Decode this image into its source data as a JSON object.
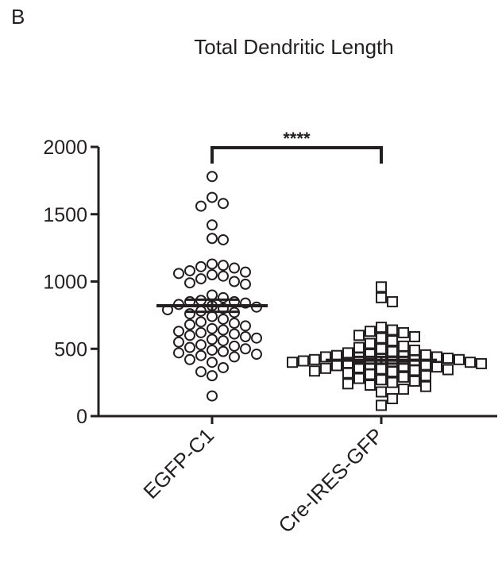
{
  "panel_letter": "B",
  "chart_data": {
    "type": "scatter",
    "title": "Total Dendritic Length",
    "xlabel": "",
    "ylabel": "",
    "categories": [
      "EGFP-C1",
      "Cre-IRES-GFP"
    ],
    "ylim": [
      0,
      2000
    ],
    "yticks": [
      0,
      500,
      1000,
      1500,
      2000
    ],
    "grid": false,
    "significance": {
      "label": "****",
      "between": [
        "EGFP-C1",
        "Cre-IRES-GFP"
      ]
    },
    "series": [
      {
        "category": "EGFP-C1",
        "marker": "circle",
        "mean": 820,
        "sem_upper": 865,
        "sem_lower": 775,
        "values": [
          1780,
          1625,
          1580,
          1560,
          1420,
          1320,
          1310,
          1130,
          1120,
          1110,
          1100,
          1080,
          1070,
          1060,
          1050,
          1040,
          1020,
          1000,
          990,
          980,
          900,
          880,
          860,
          850,
          850,
          840,
          830,
          820,
          810,
          800,
          790,
          780,
          770,
          760,
          740,
          720,
          700,
          690,
          680,
          670,
          650,
          640,
          630,
          620,
          610,
          600,
          590,
          580,
          570,
          560,
          550,
          530,
          520,
          510,
          500,
          490,
          480,
          470,
          460,
          450,
          440,
          420,
          400,
          360,
          330,
          300,
          150
        ]
      },
      {
        "category": "Cre-IRES-GFP",
        "marker": "square",
        "mean": 415,
        "sem_upper": 440,
        "sem_lower": 390,
        "values": [
          960,
          880,
          850,
          660,
          640,
          630,
          620,
          600,
          590,
          580,
          560,
          540,
          520,
          510,
          500,
          490,
          480,
          470,
          460,
          455,
          450,
          445,
          440,
          440,
          435,
          430,
          425,
          420,
          420,
          415,
          410,
          405,
          400,
          400,
          395,
          390,
          385,
          380,
          375,
          370,
          365,
          360,
          355,
          350,
          345,
          340,
          335,
          330,
          320,
          310,
          300,
          290,
          280,
          270,
          260,
          250,
          240,
          230,
          220,
          200,
          180,
          130,
          80
        ]
      }
    ]
  }
}
